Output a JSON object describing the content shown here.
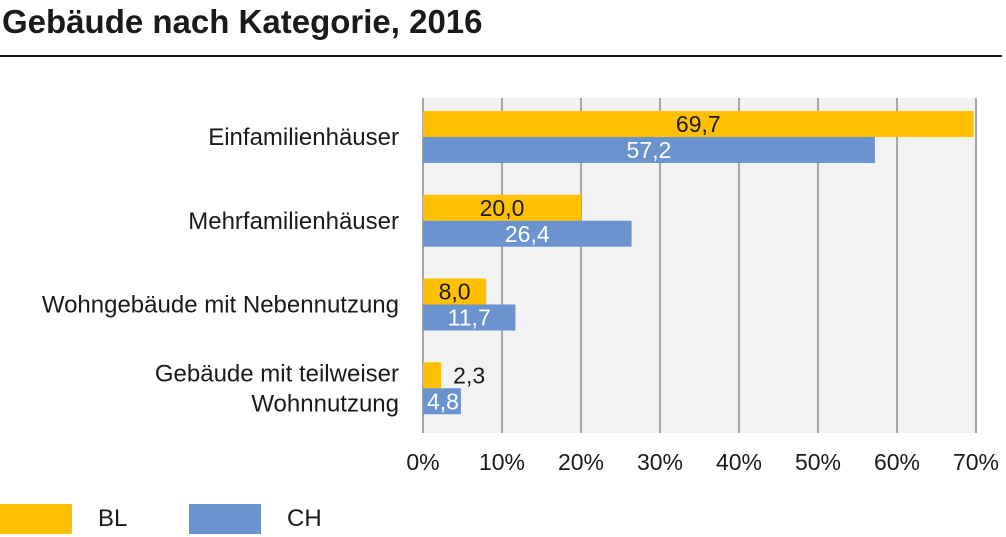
{
  "title": "Gebäude nach Kategorie, 2016",
  "chart_data": {
    "type": "bar",
    "orientation": "horizontal",
    "categories": [
      [
        "Einfamilienhäuser"
      ],
      [
        "Mehrfamilienhäuser"
      ],
      [
        "Wohngebäude mit Nebennutzung"
      ],
      [
        "Gebäude mit teilweiser",
        "Wohnnutzung"
      ]
    ],
    "series": [
      {
        "name": "BL",
        "color": "#FFC000",
        "values": [
          69.7,
          20.0,
          8.0,
          2.3
        ],
        "labels": [
          "69,7",
          "20,0",
          "8,0",
          "2,3"
        ]
      },
      {
        "name": "CH",
        "color": "#6A93CF",
        "values": [
          57.2,
          26.4,
          11.7,
          4.8
        ],
        "labels": [
          "57,2",
          "26,4",
          "11,7",
          "4,8"
        ]
      }
    ],
    "xlim": [
      0,
      70
    ],
    "xticks": [
      "0%",
      "10%",
      "20%",
      "30%",
      "40%",
      "50%",
      "60%",
      "70%"
    ],
    "grid": true,
    "legend_position": "bottom-left"
  }
}
